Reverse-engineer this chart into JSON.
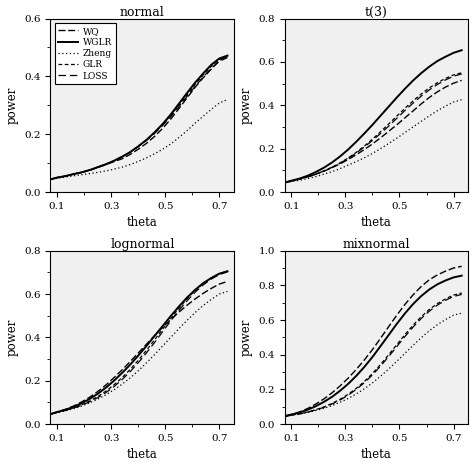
{
  "theta": [
    0.08,
    0.1,
    0.13,
    0.16,
    0.19,
    0.22,
    0.25,
    0.28,
    0.31,
    0.34,
    0.37,
    0.4,
    0.43,
    0.46,
    0.49,
    0.52,
    0.55,
    0.58,
    0.61,
    0.64,
    0.67,
    0.7,
    0.73
  ],
  "panels": {
    "normal": {
      "title": "normal",
      "ylim": [
        0.0,
        0.6
      ],
      "yticks": [
        0.0,
        0.2,
        0.4,
        0.6
      ],
      "WQ": [
        0.045,
        0.05,
        0.055,
        0.062,
        0.068,
        0.075,
        0.085,
        0.095,
        0.105,
        0.115,
        0.13,
        0.148,
        0.168,
        0.192,
        0.22,
        0.252,
        0.288,
        0.325,
        0.362,
        0.395,
        0.425,
        0.455,
        0.47
      ],
      "WGLR": [
        0.045,
        0.05,
        0.055,
        0.062,
        0.068,
        0.076,
        0.086,
        0.096,
        0.108,
        0.122,
        0.138,
        0.158,
        0.18,
        0.206,
        0.235,
        0.268,
        0.305,
        0.342,
        0.378,
        0.41,
        0.44,
        0.462,
        0.472
      ],
      "Zheng": [
        0.044,
        0.048,
        0.052,
        0.056,
        0.06,
        0.064,
        0.068,
        0.073,
        0.079,
        0.086,
        0.095,
        0.106,
        0.118,
        0.132,
        0.148,
        0.166,
        0.188,
        0.212,
        0.238,
        0.262,
        0.286,
        0.308,
        0.32
      ],
      "GLR": [
        0.045,
        0.05,
        0.055,
        0.062,
        0.068,
        0.076,
        0.086,
        0.096,
        0.108,
        0.122,
        0.138,
        0.158,
        0.18,
        0.205,
        0.233,
        0.265,
        0.3,
        0.336,
        0.372,
        0.405,
        0.435,
        0.458,
        0.47
      ],
      "LOSS": [
        0.045,
        0.05,
        0.055,
        0.062,
        0.068,
        0.076,
        0.086,
        0.096,
        0.108,
        0.122,
        0.138,
        0.157,
        0.178,
        0.202,
        0.23,
        0.26,
        0.295,
        0.33,
        0.365,
        0.398,
        0.428,
        0.452,
        0.465
      ]
    },
    "t3": {
      "title": "t(3)",
      "ylim": [
        0.0,
        0.8
      ],
      "yticks": [
        0.0,
        0.2,
        0.4,
        0.6,
        0.8
      ],
      "WQ": [
        0.045,
        0.052,
        0.06,
        0.07,
        0.082,
        0.096,
        0.112,
        0.13,
        0.15,
        0.172,
        0.196,
        0.222,
        0.25,
        0.28,
        0.31,
        0.342,
        0.374,
        0.406,
        0.436,
        0.462,
        0.484,
        0.502,
        0.515
      ],
      "WGLR": [
        0.045,
        0.052,
        0.062,
        0.075,
        0.092,
        0.112,
        0.136,
        0.164,
        0.196,
        0.232,
        0.27,
        0.31,
        0.352,
        0.394,
        0.436,
        0.476,
        0.514,
        0.548,
        0.578,
        0.604,
        0.624,
        0.642,
        0.654
      ],
      "Zheng": [
        0.044,
        0.048,
        0.054,
        0.062,
        0.071,
        0.082,
        0.094,
        0.108,
        0.124,
        0.14,
        0.158,
        0.178,
        0.2,
        0.224,
        0.248,
        0.274,
        0.3,
        0.326,
        0.351,
        0.375,
        0.396,
        0.415,
        0.426
      ],
      "GLR": [
        0.045,
        0.052,
        0.06,
        0.07,
        0.082,
        0.097,
        0.114,
        0.134,
        0.157,
        0.183,
        0.212,
        0.244,
        0.278,
        0.314,
        0.35,
        0.386,
        0.42,
        0.452,
        0.48,
        0.504,
        0.524,
        0.54,
        0.55
      ],
      "LOSS": [
        0.045,
        0.052,
        0.06,
        0.07,
        0.082,
        0.097,
        0.114,
        0.133,
        0.155,
        0.18,
        0.208,
        0.238,
        0.27,
        0.304,
        0.34,
        0.376,
        0.41,
        0.442,
        0.471,
        0.496,
        0.517,
        0.534,
        0.545
      ]
    },
    "lognormal": {
      "title": "lognormal",
      "ylim": [
        0.0,
        0.8
      ],
      "yticks": [
        0.0,
        0.2,
        0.4,
        0.6,
        0.8
      ],
      "WQ": [
        0.048,
        0.056,
        0.068,
        0.083,
        0.102,
        0.124,
        0.15,
        0.18,
        0.214,
        0.25,
        0.288,
        0.328,
        0.368,
        0.408,
        0.446,
        0.482,
        0.516,
        0.548,
        0.577,
        0.603,
        0.626,
        0.646,
        0.658
      ],
      "WGLR": [
        0.048,
        0.056,
        0.066,
        0.08,
        0.096,
        0.116,
        0.14,
        0.168,
        0.2,
        0.236,
        0.274,
        0.316,
        0.36,
        0.406,
        0.452,
        0.498,
        0.542,
        0.583,
        0.619,
        0.65,
        0.674,
        0.694,
        0.705
      ],
      "Zheng": [
        0.047,
        0.053,
        0.061,
        0.071,
        0.083,
        0.098,
        0.115,
        0.135,
        0.158,
        0.184,
        0.213,
        0.246,
        0.282,
        0.32,
        0.36,
        0.4,
        0.44,
        0.478,
        0.514,
        0.547,
        0.575,
        0.6,
        0.612
      ],
      "GLR": [
        0.048,
        0.055,
        0.064,
        0.075,
        0.089,
        0.106,
        0.127,
        0.152,
        0.181,
        0.214,
        0.252,
        0.294,
        0.34,
        0.388,
        0.438,
        0.487,
        0.534,
        0.578,
        0.616,
        0.648,
        0.674,
        0.694,
        0.706
      ],
      "LOSS": [
        0.048,
        0.055,
        0.063,
        0.074,
        0.087,
        0.103,
        0.122,
        0.145,
        0.173,
        0.205,
        0.242,
        0.283,
        0.328,
        0.376,
        0.426,
        0.476,
        0.524,
        0.568,
        0.608,
        0.642,
        0.669,
        0.69,
        0.702
      ]
    },
    "mixnormal": {
      "title": "mixnormal",
      "ylim": [
        0.0,
        1.0
      ],
      "yticks": [
        0.0,
        0.2,
        0.4,
        0.6,
        0.8,
        1.0
      ],
      "WQ": [
        0.048,
        0.056,
        0.07,
        0.09,
        0.115,
        0.145,
        0.18,
        0.22,
        0.265,
        0.315,
        0.37,
        0.43,
        0.495,
        0.562,
        0.628,
        0.69,
        0.745,
        0.793,
        0.832,
        0.86,
        0.882,
        0.9,
        0.91
      ],
      "WGLR": [
        0.048,
        0.055,
        0.067,
        0.083,
        0.103,
        0.128,
        0.157,
        0.192,
        0.232,
        0.278,
        0.33,
        0.387,
        0.45,
        0.514,
        0.578,
        0.638,
        0.692,
        0.738,
        0.776,
        0.806,
        0.828,
        0.846,
        0.856
      ],
      "Zheng": [
        0.046,
        0.051,
        0.058,
        0.067,
        0.078,
        0.091,
        0.107,
        0.126,
        0.148,
        0.174,
        0.204,
        0.238,
        0.276,
        0.318,
        0.362,
        0.408,
        0.454,
        0.498,
        0.538,
        0.573,
        0.603,
        0.628,
        0.64
      ],
      "GLR": [
        0.047,
        0.052,
        0.06,
        0.07,
        0.083,
        0.099,
        0.119,
        0.143,
        0.172,
        0.206,
        0.246,
        0.292,
        0.344,
        0.4,
        0.458,
        0.516,
        0.57,
        0.619,
        0.661,
        0.695,
        0.722,
        0.744,
        0.756
      ],
      "LOSS": [
        0.047,
        0.052,
        0.059,
        0.069,
        0.082,
        0.097,
        0.116,
        0.139,
        0.167,
        0.2,
        0.239,
        0.284,
        0.335,
        0.39,
        0.447,
        0.505,
        0.559,
        0.609,
        0.651,
        0.686,
        0.714,
        0.736,
        0.748
      ]
    }
  },
  "xticks": [
    0.1,
    0.3,
    0.5,
    0.7
  ],
  "xlabel": "theta",
  "ylabel": "power",
  "show_legend_panel": "normal",
  "legend_labels": [
    "WQ",
    "WGLR",
    "Zheng",
    "GLR",
    "LOSS"
  ],
  "bgcolor": "#f0f0f0"
}
